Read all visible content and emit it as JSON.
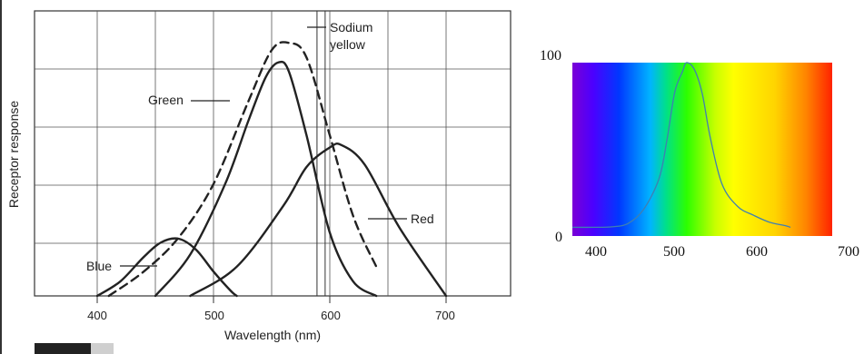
{
  "chart_data": [
    {
      "type": "line",
      "title": "",
      "xlabel": "Wavelength (nm)",
      "ylabel": "Receptor response",
      "xlim": [
        350,
        760
      ],
      "ylim": [
        0,
        100
      ],
      "grid": true,
      "x_ticks": [
        "400",
        "500",
        "600",
        "700"
      ],
      "series": [
        {
          "name": "Blue",
          "style": "solid",
          "x": [
            400,
            420,
            440,
            455,
            470,
            485,
            500,
            515,
            520
          ],
          "y": [
            0,
            6,
            16,
            22,
            23.5,
            19,
            10,
            2,
            0
          ]
        },
        {
          "name": "Green",
          "style": "solid",
          "x": [
            450,
            480,
            510,
            530,
            545,
            556,
            565,
            580,
            600,
            620,
            640
          ],
          "y": [
            0,
            17,
            46,
            72,
            90,
            96,
            92,
            66,
            26,
            6,
            0
          ]
        },
        {
          "name": "Red",
          "style": "solid",
          "x": [
            480,
            520,
            560,
            580,
            600,
            610,
            630,
            660,
            700
          ],
          "y": [
            0,
            12,
            37,
            53,
            61,
            62,
            54,
            28,
            0
          ]
        },
        {
          "name": "Sodium yellow",
          "style": "dashed",
          "x": [
            410,
            440,
            470,
            500,
            530,
            550,
            565,
            580,
            600,
            620,
            640
          ],
          "y": [
            0,
            10,
            24,
            46,
            80,
            101,
            104,
            98,
            66,
            33,
            12
          ]
        }
      ],
      "annotations": [
        {
          "text": "Sodium yellow",
          "lines": [
            "Sodium",
            "yellow"
          ],
          "x": 587,
          "y": 96
        },
        {
          "text": "Green",
          "x": 527,
          "y": 75
        },
        {
          "text": "Red",
          "x": 660,
          "y": 28
        },
        {
          "text": "Blue",
          "x": 455,
          "y": 11
        }
      ],
      "vertical_marker_x": [
        589,
        596
      ]
    },
    {
      "type": "area",
      "title": "",
      "xlabel": "",
      "ylabel": "",
      "xlim": [
        370,
        700
      ],
      "ylim": [
        0,
        100
      ],
      "x_ticks": [
        "400",
        "500",
        "600",
        "700"
      ],
      "y_ticks": [
        "0",
        "100"
      ],
      "background": "visible spectrum gradient",
      "spectrum_colors": [
        "#7a00d6",
        "#4b00ff",
        "#0038ff",
        "#00b4ff",
        "#00e08a",
        "#2cff00",
        "#c8ff00",
        "#ffff00",
        "#ffd400",
        "#ff8400",
        "#ff2200"
      ],
      "line_color": "#3f7fb2",
      "series": [
        {
          "name": "",
          "x": [
            370,
            400,
            420,
            440,
            460,
            480,
            490,
            500,
            510,
            515,
            525,
            535,
            545,
            560,
            580,
            600,
            620,
            640,
            647
          ],
          "y": [
            5,
            5,
            5.3,
            7,
            15,
            33,
            55,
            83,
            95,
            100,
            96,
            82,
            57,
            30,
            17,
            12,
            8,
            6,
            5
          ]
        }
      ]
    }
  ],
  "colors": {
    "ink": "#222222",
    "grid": "#555555",
    "line_blue": "#3f7fb2"
  }
}
